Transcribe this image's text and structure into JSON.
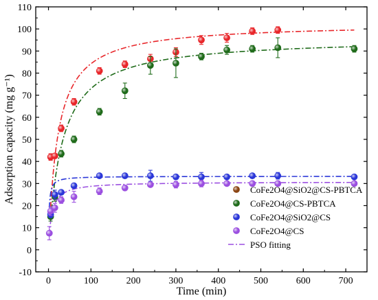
{
  "chart_data": {
    "type": "scatter",
    "title": "",
    "xlabel": "Time (min)",
    "ylabel": "Adsorption capacity (mg g⁻¹)",
    "xlim": [
      -30,
      750
    ],
    "ylim": [
      -10,
      110
    ],
    "xticks": [
      0,
      100,
      200,
      300,
      400,
      500,
      600,
      700
    ],
    "yticks": [
      -10,
      0,
      10,
      20,
      30,
      40,
      50,
      60,
      70,
      80,
      90,
      100,
      110
    ],
    "grid": false,
    "legend_position": "right",
    "series": [
      {
        "name": "CoFe2O4@SiO2@CS-PBTCA",
        "color": "#e8262a",
        "x": [
          5,
          15,
          30,
          60,
          120,
          180,
          240,
          300,
          360,
          420,
          480,
          540
        ],
        "y": [
          42,
          42.5,
          55,
          67,
          81,
          84,
          86.5,
          89.5,
          95,
          96,
          99,
          99.5
        ],
        "err": [
          1.5,
          1,
          1.5,
          1.5,
          1.5,
          1.5,
          2,
          2,
          2,
          2,
          1.5,
          1.5
        ],
        "fit": {
          "qe": 102.5,
          "k2": 0.00045,
          "xmin": 5,
          "xmax": 720,
          "color": "#e8262a"
        }
      },
      {
        "name": "CoFe2O4@CS-PBTCA",
        "color": "#1f6b1a",
        "x": [
          5,
          15,
          30,
          60,
          120,
          180,
          240,
          300,
          360,
          420,
          480,
          540,
          720
        ],
        "y": [
          15,
          24,
          43.5,
          50,
          62.5,
          72,
          83.5,
          84.5,
          87.5,
          90.5,
          91,
          91.5,
          91
        ],
        "err": [
          2,
          2,
          1.5,
          1.5,
          1.5,
          3.5,
          4,
          6.5,
          1.5,
          2,
          1.5,
          4.5,
          1.5
        ],
        "fit": {
          "qe": 96,
          "k2": 0.00033,
          "xmin": 5,
          "xmax": 720,
          "color": "#1f6b1a"
        }
      },
      {
        "name": "CoFe2O4@SiO2@CS",
        "color": "#2a36d8",
        "x": [
          5,
          15,
          30,
          60,
          120,
          180,
          240,
          300,
          360,
          420,
          480,
          540,
          720
        ],
        "y": [
          16,
          25,
          26,
          29,
          33.5,
          33.5,
          33.5,
          33,
          33,
          33,
          33.5,
          33.5,
          33
        ],
        "err": [
          1.5,
          2,
          1,
          1,
          1,
          1,
          2.5,
          1,
          2,
          1,
          1,
          1.5,
          1
        ],
        "fit": {
          "qe": 33.3,
          "k2": 0.02,
          "xmin": 2,
          "xmax": 720,
          "color": "#2a36d8"
        }
      },
      {
        "name": "CoFe2O4@CS",
        "color": "#9b4fe0",
        "x": [
          2,
          5,
          15,
          30,
          60,
          120,
          180,
          240,
          300,
          360,
          420,
          480,
          540,
          720
        ],
        "y": [
          7.5,
          17.5,
          19,
          22.5,
          24,
          26.5,
          28,
          29.5,
          29.5,
          30,
          30,
          30,
          30,
          30
        ],
        "err": [
          3,
          2,
          2,
          1.5,
          2.5,
          1.5,
          1,
          1,
          1.5,
          1.5,
          1,
          1,
          1,
          1
        ],
        "fit": {
          "qe": 30.8,
          "k2": 0.0045,
          "xmin": 2,
          "xmax": 720,
          "color": "#9b4fe0"
        }
      }
    ],
    "legend": [
      {
        "label": "CoFe2O4@SiO2@CS-PBTCA",
        "kind": "marker",
        "color": "#8b4513"
      },
      {
        "label": "CoFe2O4@CS-PBTCA",
        "kind": "marker",
        "color": "#1f6b1a"
      },
      {
        "label": "CoFe2O4@SiO2@CS",
        "kind": "marker",
        "color": "#2a36d8"
      },
      {
        "label": "CoFe2O4@CS",
        "kind": "marker",
        "color": "#9b4fe0"
      },
      {
        "label": "PSO fitting",
        "kind": "line",
        "color": "#9b4fe0"
      }
    ]
  }
}
